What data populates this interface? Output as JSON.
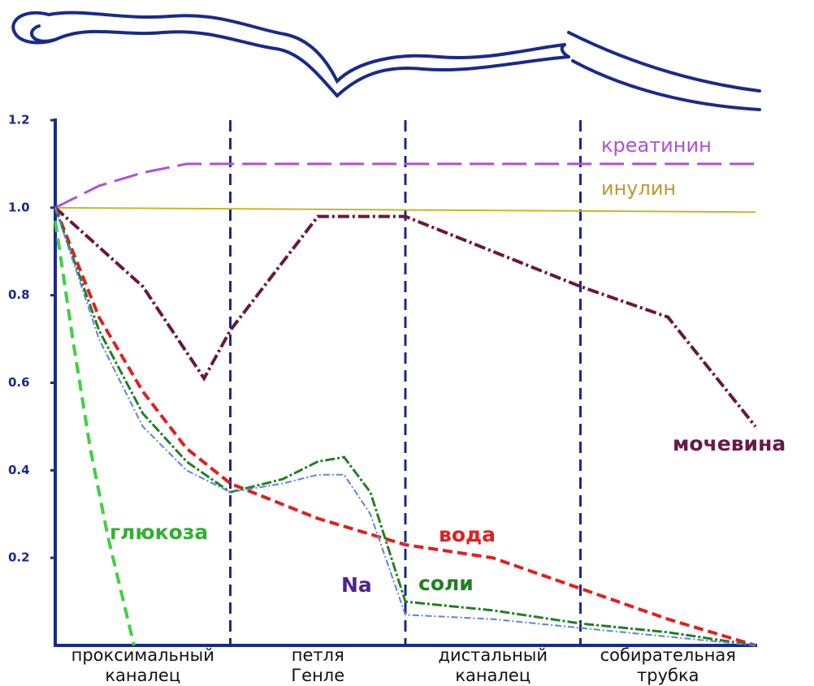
{
  "chart_data": {
    "type": "line",
    "categories": [
      [
        "проксимальный",
        "каналец"
      ],
      [
        "петля",
        "Генле"
      ],
      [
        "дистальный",
        "каналец"
      ],
      [
        "собирательная",
        "трубка"
      ]
    ],
    "xlim": [
      0,
      4
    ],
    "ylim": [
      0,
      1.2
    ],
    "yticks": [
      0.2,
      0.4,
      0.6,
      0.8,
      {
        "value": 1,
        "label": "1.0"
      },
      1.2
    ],
    "series": [
      {
        "name": "креатинин",
        "color": "#b050d8",
        "x": [
          0,
          0.25,
          0.5,
          0.75,
          1,
          4
        ],
        "values": [
          1.0,
          1.05,
          1.08,
          1.1,
          1.1,
          1.1
        ]
      },
      {
        "name": "инулин",
        "color": "#c8b820",
        "x": [
          0,
          4
        ],
        "values": [
          1.0,
          0.99
        ]
      },
      {
        "name": "мочевина",
        "color": "#6a1838",
        "x": [
          0,
          0.5,
          0.85,
          1,
          1.5,
          2,
          3,
          3.5,
          4
        ],
        "values": [
          1.0,
          0.82,
          0.61,
          0.72,
          0.98,
          0.98,
          0.82,
          0.75,
          0.5
        ]
      },
      {
        "name": "глюкоза",
        "color": "#40d040",
        "x": [
          0,
          0.1,
          0.2,
          0.3,
          0.45
        ],
        "values": [
          0.97,
          0.7,
          0.45,
          0.25,
          0
        ]
      },
      {
        "name": "вода",
        "color": "#e02020",
        "x": [
          0,
          0.25,
          0.5,
          0.75,
          1,
          1.5,
          2,
          2.5,
          3,
          3.5,
          4
        ],
        "values": [
          1.0,
          0.75,
          0.58,
          0.45,
          0.37,
          0.29,
          0.23,
          0.2,
          0.13,
          0.06,
          0
        ]
      },
      {
        "name": "соли",
        "color": "#208020",
        "x": [
          0,
          0.25,
          0.5,
          0.75,
          1,
          1.3,
          1.5,
          1.65,
          1.8,
          2,
          2.5,
          3,
          3.5,
          4
        ],
        "values": [
          1.0,
          0.72,
          0.53,
          0.42,
          0.35,
          0.38,
          0.42,
          0.43,
          0.35,
          0.1,
          0.08,
          0.05,
          0.03,
          0
        ]
      },
      {
        "name": "Na",
        "color": "#6080e0",
        "x": [
          0,
          0.25,
          0.5,
          0.75,
          1,
          1.3,
          1.5,
          1.65,
          1.8,
          2,
          2.5,
          3,
          3.5,
          4
        ],
        "values": [
          1.0,
          0.7,
          0.5,
          0.4,
          0.35,
          0.37,
          0.39,
          0.39,
          0.3,
          0.07,
          0.06,
          0.04,
          0.02,
          0
        ]
      }
    ]
  }
}
